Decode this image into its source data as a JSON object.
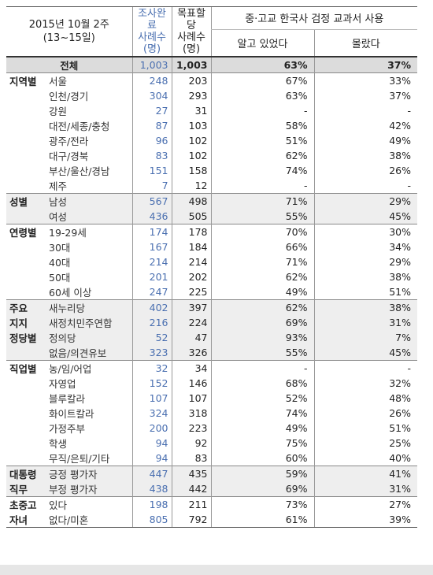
{
  "header": {
    "period": "2015년 10월 2주",
    "dates": "(13~15일)",
    "col_complete": [
      "조사완료",
      "사례수",
      "(명)"
    ],
    "col_target": [
      "목표할당",
      "사례수",
      "(명)"
    ],
    "col_question": "중·고교 한국사 검정 교과서 사용",
    "col_know": "알고 있었다",
    "col_dontknow": "몰랐다"
  },
  "total": {
    "label": "전체",
    "complete": "1,003",
    "target": "1,003",
    "know": "63%",
    "dontknow": "37%"
  },
  "groups": [
    {
      "label": "지역별",
      "shade": false,
      "rows": [
        {
          "label": "서울",
          "complete": "248",
          "target": "203",
          "know": "67%",
          "dontknow": "33%"
        },
        {
          "label": "인천/경기",
          "complete": "304",
          "target": "293",
          "know": "63%",
          "dontknow": "37%"
        },
        {
          "label": "강원",
          "complete": "27",
          "target": "31",
          "know": "-",
          "dontknow": "-"
        },
        {
          "label": "대전/세종/충청",
          "complete": "87",
          "target": "103",
          "know": "58%",
          "dontknow": "42%"
        },
        {
          "label": "광주/전라",
          "complete": "96",
          "target": "102",
          "know": "51%",
          "dontknow": "49%"
        },
        {
          "label": "대구/경북",
          "complete": "83",
          "target": "102",
          "know": "62%",
          "dontknow": "38%"
        },
        {
          "label": "부산/울산/경남",
          "complete": "151",
          "target": "158",
          "know": "74%",
          "dontknow": "26%"
        },
        {
          "label": "제주",
          "complete": "7",
          "target": "12",
          "know": "-",
          "dontknow": "-"
        }
      ]
    },
    {
      "label": "성별",
      "shade": true,
      "rows": [
        {
          "label": "남성",
          "complete": "567",
          "target": "498",
          "know": "71%",
          "dontknow": "29%"
        },
        {
          "label": "여성",
          "complete": "436",
          "target": "505",
          "know": "55%",
          "dontknow": "45%"
        }
      ]
    },
    {
      "label": "연령별",
      "shade": false,
      "rows": [
        {
          "label": "19-29세",
          "complete": "174",
          "target": "178",
          "know": "70%",
          "dontknow": "30%"
        },
        {
          "label": "30대",
          "complete": "167",
          "target": "184",
          "know": "66%",
          "dontknow": "34%"
        },
        {
          "label": "40대",
          "complete": "214",
          "target": "214",
          "know": "71%",
          "dontknow": "29%"
        },
        {
          "label": "50대",
          "complete": "201",
          "target": "202",
          "know": "62%",
          "dontknow": "38%"
        },
        {
          "label": "60세 이상",
          "complete": "247",
          "target": "225",
          "know": "49%",
          "dontknow": "51%"
        }
      ]
    },
    {
      "label": "주요",
      "label2": "지지",
      "label3": "정당별",
      "shade": true,
      "rows": [
        {
          "label": "새누리당",
          "complete": "402",
          "target": "397",
          "know": "62%",
          "dontknow": "38%"
        },
        {
          "label": "새정치민주연합",
          "complete": "216",
          "target": "224",
          "know": "69%",
          "dontknow": "31%"
        },
        {
          "label": "정의당",
          "complete": "52",
          "target": "47",
          "know": "93%",
          "dontknow": "7%"
        },
        {
          "label": "없음/의견유보",
          "complete": "323",
          "target": "326",
          "know": "55%",
          "dontknow": "45%"
        }
      ]
    },
    {
      "label": "직업별",
      "shade": false,
      "rows": [
        {
          "label": "농/임/어업",
          "complete": "32",
          "target": "34",
          "know": "-",
          "dontknow": "-"
        },
        {
          "label": "자영업",
          "complete": "152",
          "target": "146",
          "know": "68%",
          "dontknow": "32%"
        },
        {
          "label": "블루칼라",
          "complete": "107",
          "target": "107",
          "know": "52%",
          "dontknow": "48%"
        },
        {
          "label": "화이트칼라",
          "complete": "324",
          "target": "318",
          "know": "74%",
          "dontknow": "26%"
        },
        {
          "label": "가정주부",
          "complete": "200",
          "target": "223",
          "know": "49%",
          "dontknow": "51%"
        },
        {
          "label": "학생",
          "complete": "94",
          "target": "92",
          "know": "75%",
          "dontknow": "25%"
        },
        {
          "label": "무직/은퇴/기타",
          "complete": "94",
          "target": "83",
          "know": "60%",
          "dontknow": "40%"
        }
      ]
    },
    {
      "label": "대통령",
      "label2": "직무",
      "shade": true,
      "rows": [
        {
          "label": "긍정 평가자",
          "complete": "447",
          "target": "435",
          "know": "59%",
          "dontknow": "41%"
        },
        {
          "label": "부정 평가자",
          "complete": "438",
          "target": "442",
          "know": "69%",
          "dontknow": "31%"
        }
      ]
    },
    {
      "label": "초중고",
      "label2": "자녀",
      "shade": false,
      "rows": [
        {
          "label": "있다",
          "complete": "198",
          "target": "211",
          "know": "73%",
          "dontknow": "27%"
        },
        {
          "label": "없다/미혼",
          "complete": "805",
          "target": "792",
          "know": "61%",
          "dontknow": "39%"
        }
      ]
    }
  ]
}
